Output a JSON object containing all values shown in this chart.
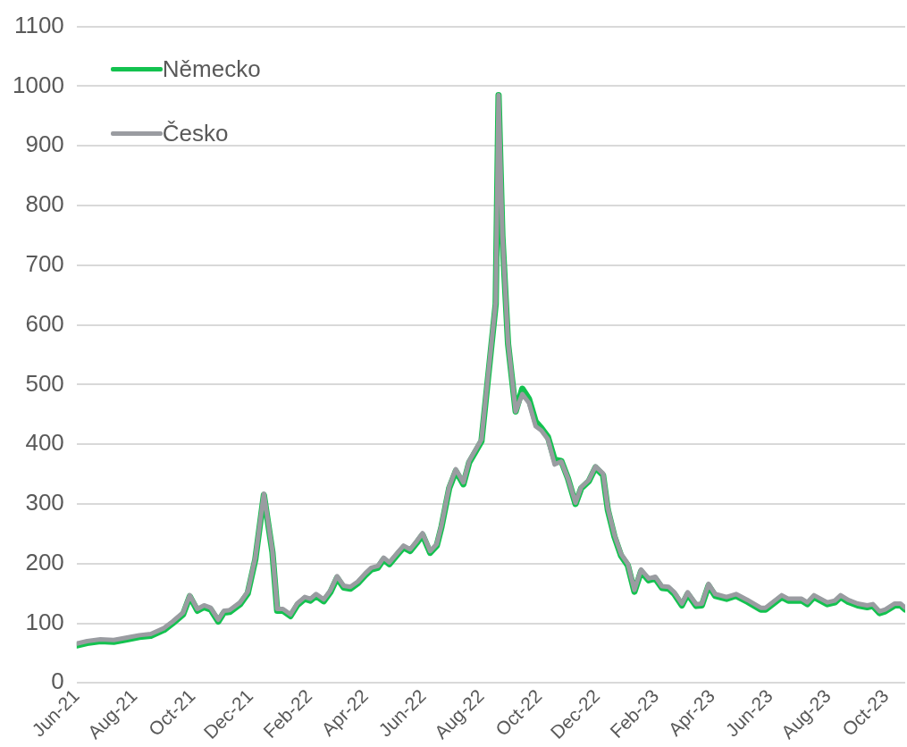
{
  "chart_data": {
    "type": "line",
    "x": [
      "2021-06-01",
      "2021-06-12",
      "2021-06-26",
      "2021-07-10",
      "2021-07-24",
      "2021-08-06",
      "2021-08-18",
      "2021-09-01",
      "2021-09-10",
      "2021-09-21",
      "2021-09-28",
      "2021-10-06",
      "2021-10-13",
      "2021-10-20",
      "2021-10-28",
      "2021-11-03",
      "2021-11-09",
      "2021-11-20",
      "2021-11-28",
      "2021-12-06",
      "2021-12-15",
      "2021-12-24",
      "2021-12-29",
      "2022-01-04",
      "2022-01-12",
      "2022-01-19",
      "2022-01-27",
      "2022-02-02",
      "2022-02-08",
      "2022-02-16",
      "2022-02-23",
      "2022-03-02",
      "2022-03-09",
      "2022-03-16",
      "2022-03-24",
      "2022-04-01",
      "2022-04-07",
      "2022-04-14",
      "2022-04-20",
      "2022-04-26",
      "2022-05-05",
      "2022-05-11",
      "2022-05-18",
      "2022-05-25",
      "2022-05-31",
      "2022-06-08",
      "2022-06-15",
      "2022-06-20",
      "2022-06-28",
      "2022-07-05",
      "2022-07-13",
      "2022-07-19",
      "2022-08-01",
      "2022-08-16",
      "2022-08-19",
      "2022-08-23",
      "2022-08-29",
      "2022-09-06",
      "2022-09-13",
      "2022-09-20",
      "2022-09-27",
      "2022-10-03",
      "2022-10-10",
      "2022-10-17",
      "2022-10-24",
      "2022-10-31",
      "2022-11-08",
      "2022-11-14",
      "2022-11-22",
      "2022-11-29",
      "2022-12-07",
      "2022-12-12",
      "2022-12-19",
      "2022-12-26",
      "2023-01-02",
      "2023-01-09",
      "2023-01-16",
      "2023-01-24",
      "2023-01-31",
      "2023-02-07",
      "2023-02-14",
      "2023-02-20",
      "2023-02-28",
      "2023-03-06",
      "2023-03-15",
      "2023-03-21",
      "2023-03-28",
      "2023-04-04",
      "2023-04-16",
      "2023-04-26",
      "2023-05-08",
      "2023-05-22",
      "2023-05-27",
      "2023-06-13",
      "2023-06-20",
      "2023-07-04",
      "2023-07-10",
      "2023-07-17",
      "2023-07-31",
      "2023-08-08",
      "2023-08-14",
      "2023-08-22",
      "2023-09-01",
      "2023-09-11",
      "2023-09-17",
      "2023-09-24",
      "2023-09-30",
      "2023-10-10",
      "2023-10-16",
      "2023-10-21"
    ],
    "series": [
      {
        "name": "Německo",
        "color": "#13c24f",
        "values": [
          63,
          67,
          70,
          69,
          73,
          77,
          79,
          89,
          100,
          115,
          145,
          121,
          127,
          123,
          103,
          118,
          119,
          132,
          150,
          207,
          315,
          219,
          121,
          121,
          112,
          130,
          141,
          138,
          146,
          137,
          152,
          176,
          160,
          158,
          167,
          181,
          190,
          193,
          207,
          199,
          216,
          227,
          221,
          235,
          248,
          218,
          230,
          262,
          326,
          355,
          333,
          369,
          405,
          635,
          985,
          750,
          568,
          455,
          493,
          476,
          438,
          427,
          412,
          374,
          372,
          343,
          300,
          326,
          338,
          361,
          348,
          290,
          245,
          213,
          197,
          153,
          187,
          172,
          175,
          159,
          158,
          149,
          130,
          149,
          129,
          130,
          163,
          146,
          141,
          146,
          136,
          123,
          123,
          144,
          138,
          138,
          132,
          144,
          132,
          135,
          144,
          136,
          130,
          127,
          129,
          117,
          120,
          130,
          130,
          123
        ]
      },
      {
        "name": "Česko",
        "color": "#9a9ca1",
        "values": [
          66,
          70,
          73,
          72,
          76,
          80,
          82,
          92,
          103,
          118,
          147,
          124,
          130,
          126,
          106,
          121,
          122,
          135,
          153,
          210,
          317,
          221,
          124,
          124,
          115,
          133,
          144,
          141,
          149,
          140,
          155,
          179,
          163,
          161,
          170,
          184,
          193,
          196,
          210,
          202,
          219,
          230,
          224,
          238,
          251,
          221,
          233,
          265,
          329,
          358,
          336,
          372,
          408,
          638,
          985,
          752,
          570,
          455,
          484,
          469,
          430,
          423,
          408,
          366,
          371,
          343,
          302,
          328,
          340,
          363,
          351,
          293,
          248,
          216,
          200,
          156,
          190,
          175,
          178,
          162,
          161,
          152,
          133,
          152,
          132,
          133,
          166,
          149,
          144,
          149,
          139,
          126,
          126,
          147,
          141,
          141,
          135,
          147,
          135,
          138,
          147,
          139,
          133,
          130,
          132,
          120,
          123,
          133,
          133,
          126
        ]
      }
    ],
    "xlim": [
      "2021-06-01",
      "2023-10-21"
    ],
    "xticks": [
      {
        "value": "2021-06-01",
        "label": "Jun-21"
      },
      {
        "value": "2021-08-01",
        "label": "Aug-21"
      },
      {
        "value": "2021-10-01",
        "label": "Oct-21"
      },
      {
        "value": "2021-12-01",
        "label": "Dec-21"
      },
      {
        "value": "2022-02-01",
        "label": "Feb-22"
      },
      {
        "value": "2022-04-01",
        "label": "Apr-22"
      },
      {
        "value": "2022-06-01",
        "label": "Jun-22"
      },
      {
        "value": "2022-08-01",
        "label": "Aug-22"
      },
      {
        "value": "2022-10-01",
        "label": "Oct-22"
      },
      {
        "value": "2022-12-01",
        "label": "Dec-22"
      },
      {
        "value": "2023-02-01",
        "label": "Feb-23"
      },
      {
        "value": "2023-04-01",
        "label": "Apr-23"
      },
      {
        "value": "2023-06-01",
        "label": "Jun-23"
      },
      {
        "value": "2023-08-01",
        "label": "Aug-23"
      },
      {
        "value": "2023-10-01",
        "label": "Oct-23"
      }
    ],
    "ylim": [
      0,
      1100
    ],
    "yticks": [
      0,
      100,
      200,
      300,
      400,
      500,
      600,
      700,
      800,
      900,
      1000,
      1100
    ],
    "grid": "y",
    "legend": "top left",
    "marker": "none",
    "line_style": "solid"
  }
}
